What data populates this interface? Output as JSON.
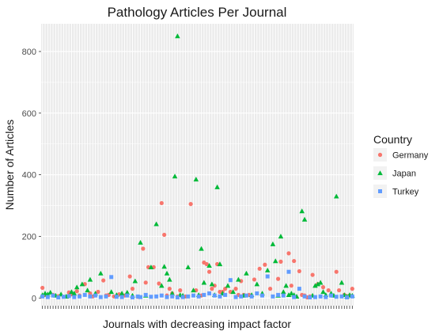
{
  "chart_data": {
    "type": "scatter",
    "title": "Pathology Articles Per Journal",
    "xlabel": "Journals with decreasing impact factor",
    "ylabel": "Number of Articles",
    "ylim": [
      -25,
      890
    ],
    "yticks": [
      0,
      200,
      400,
      600,
      800
    ],
    "xlim": [
      0.5,
      118.5
    ],
    "x_tick_labels_shown": false,
    "grid": true,
    "legend": {
      "title": "Country",
      "placement": "right"
    },
    "colors": {
      "Germany": "#f8766d",
      "Japan": "#00ba38",
      "Turkey": "#619cff",
      "panel": "#ebebeb",
      "grid": "#ffffff"
    },
    "series": [
      {
        "name": "Germany",
        "marker": "circle",
        "x": [
          1,
          2,
          3,
          5,
          7,
          9,
          11,
          12,
          14,
          15,
          17,
          19,
          20,
          22,
          24,
          25,
          26,
          28,
          30,
          32,
          34,
          35,
          37,
          39,
          40,
          41,
          43,
          45,
          46,
          47,
          48,
          49,
          50,
          52,
          53,
          55,
          57,
          59,
          61,
          62,
          63,
          64,
          65,
          66,
          67,
          68,
          69,
          70,
          72,
          74,
          75,
          76,
          77,
          79,
          81,
          83,
          85,
          87,
          90,
          91,
          92,
          94,
          95,
          96,
          98,
          99,
          100,
          101,
          102,
          103,
          105,
          107,
          109,
          112,
          113,
          115,
          116,
          117,
          118
        ],
        "y": [
          33,
          10,
          5,
          10,
          6,
          4,
          18,
          12,
          22,
          8,
          45,
          15,
          5,
          20,
          57,
          8,
          10,
          5,
          12,
          8,
          70,
          30,
          4,
          160,
          50,
          100,
          100,
          47,
          308,
          205,
          8,
          30,
          15,
          5,
          25,
          5,
          305,
          25,
          8,
          115,
          110,
          85,
          30,
          40,
          110,
          20,
          20,
          30,
          20,
          30,
          10,
          55,
          10,
          10,
          60,
          95,
          108,
          30,
          62,
          118,
          15,
          145,
          40,
          120,
          87,
          10,
          8,
          2,
          5,
          75,
          45,
          35,
          25,
          85,
          25,
          10,
          5,
          8,
          30
        ]
      },
      {
        "name": "Japan",
        "marker": "triangle",
        "x": [
          1,
          2,
          3,
          4,
          6,
          8,
          10,
          12,
          13,
          14,
          16,
          18,
          19,
          21,
          23,
          27,
          29,
          31,
          33,
          35,
          36,
          38,
          40,
          42,
          44,
          46,
          47,
          48,
          49,
          50,
          51,
          52,
          53,
          54,
          56,
          58,
          59,
          60,
          61,
          62,
          64,
          65,
          66,
          67,
          68,
          69,
          71,
          73,
          75,
          77,
          78,
          80,
          82,
          84,
          86,
          88,
          89,
          90,
          91,
          92,
          93,
          94,
          95,
          96,
          97,
          99,
          100,
          103,
          104,
          105,
          106,
          107,
          108,
          110,
          111,
          112,
          114,
          115,
          116,
          117,
          118
        ],
        "y": [
          10,
          15,
          12,
          18,
          8,
          12,
          5,
          20,
          15,
          35,
          45,
          25,
          60,
          15,
          80,
          20,
          10,
          15,
          18,
          8,
          55,
          180,
          8,
          100,
          240,
          40,
          102,
          80,
          60,
          15,
          395,
          850,
          10,
          8,
          100,
          25,
          385,
          10,
          160,
          50,
          105,
          45,
          10,
          360,
          110,
          15,
          40,
          20,
          60,
          8,
          80,
          10,
          45,
          15,
          90,
          175,
          120,
          8,
          200,
          20,
          40,
          10,
          15,
          10,
          5,
          282,
          255,
          8,
          40,
          45,
          50,
          20,
          10,
          15,
          8,
          330,
          50,
          10,
          5,
          10,
          8
        ]
      },
      {
        "name": "Turkey",
        "marker": "square",
        "x": [
          1,
          3,
          5,
          7,
          9,
          11,
          13,
          15,
          17,
          19,
          21,
          23,
          25,
          27,
          29,
          31,
          33,
          35,
          37,
          38,
          40,
          42,
          44,
          46,
          48,
          50,
          52,
          54,
          56,
          58,
          60,
          62,
          64,
          66,
          68,
          70,
          72,
          74,
          76,
          78,
          80,
          82,
          84,
          86,
          88,
          90,
          92,
          94,
          96,
          98,
          100,
          102,
          104,
          106,
          108,
          110,
          112,
          114,
          116,
          118
        ],
        "y": [
          5,
          3,
          8,
          2,
          4,
          6,
          3,
          5,
          10,
          5,
          8,
          3,
          5,
          68,
          4,
          3,
          8,
          2,
          5,
          3,
          10,
          4,
          5,
          8,
          3,
          5,
          2,
          3,
          5,
          8,
          5,
          10,
          15,
          8,
          5,
          10,
          58,
          3,
          5,
          8,
          5,
          15,
          8,
          70,
          5,
          10,
          8,
          85,
          3,
          30,
          5,
          2,
          3,
          5,
          3,
          8,
          4,
          5,
          2,
          5
        ]
      }
    ]
  }
}
